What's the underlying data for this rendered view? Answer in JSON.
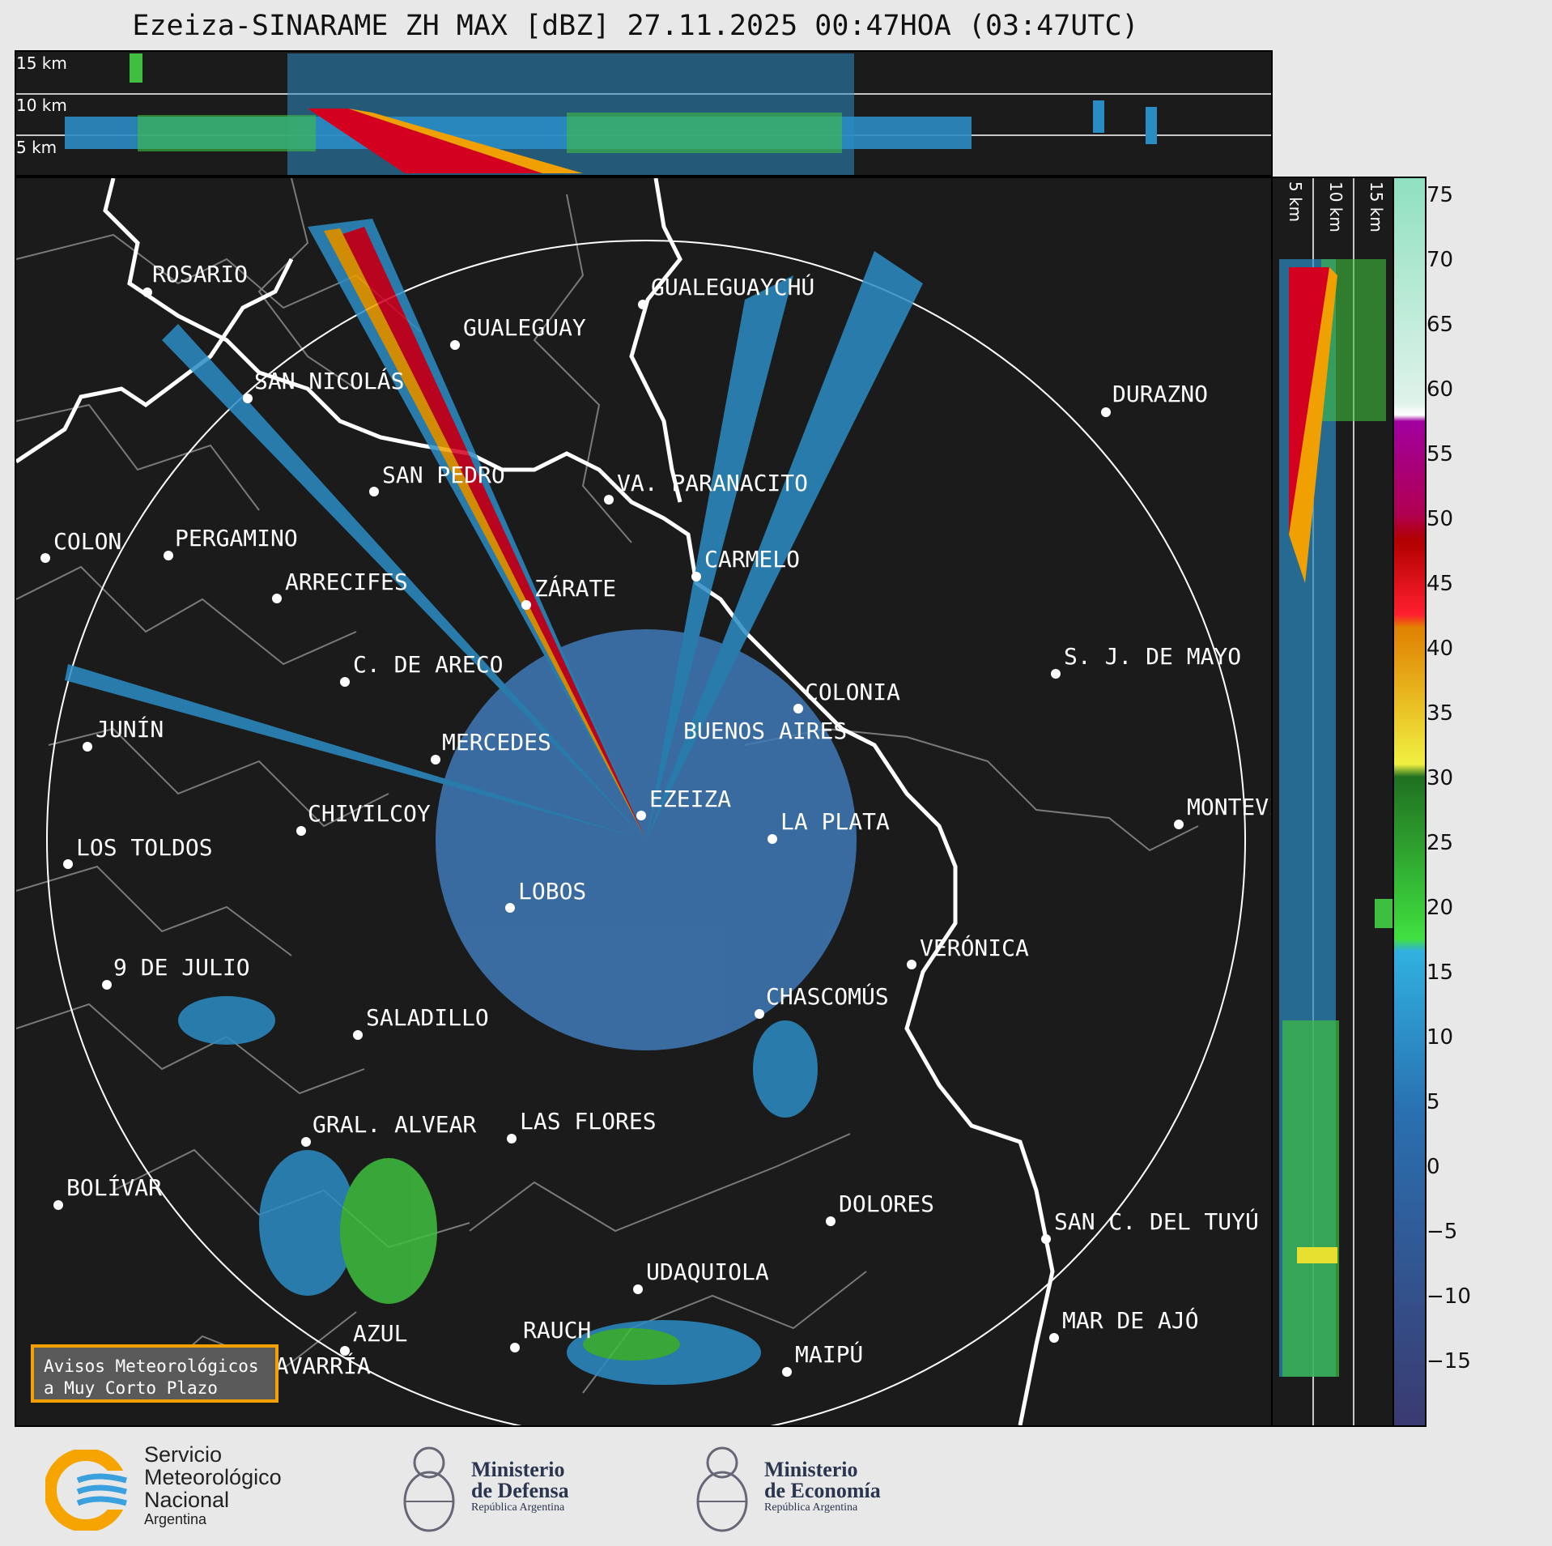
{
  "title": "Ezeiza-SINARAME ZH MAX [dBZ] 27.11.2025 00:47HOA (03:47UTC)",
  "top_panel": {
    "altitude_labels": [
      "15 km",
      "10 km",
      "5 km"
    ]
  },
  "side_panel": {
    "altitude_labels": [
      "5 km",
      "10 km",
      "15 km"
    ]
  },
  "colorbar": {
    "unit": "dBZ",
    "ticks": [
      "75",
      "70",
      "65",
      "60",
      "55",
      "50",
      "45",
      "40",
      "35",
      "30",
      "25",
      "20",
      "15",
      "10",
      "5",
      "0",
      "−5",
      "−10",
      "−15"
    ],
    "range": [
      -20,
      77
    ]
  },
  "cities": [
    {
      "name": "ROSARIO"
    },
    {
      "name": "GUALEGUAYCHÚ"
    },
    {
      "name": "GUALEGUAY"
    },
    {
      "name": "SAN NICOLÁS"
    },
    {
      "name": "DURAZNO"
    },
    {
      "name": "SAN PEDRO"
    },
    {
      "name": "VA. PARANACITO"
    },
    {
      "name": "COLON"
    },
    {
      "name": "PERGAMINO"
    },
    {
      "name": "CARMELO"
    },
    {
      "name": "ARRECIFES"
    },
    {
      "name": "ZÁRATE"
    },
    {
      "name": "S. J. DE MAYO"
    },
    {
      "name": "C. DE ARECO"
    },
    {
      "name": "COLONIA"
    },
    {
      "name": "JUNÍN"
    },
    {
      "name": "BUENOS AIRES"
    },
    {
      "name": "MERCEDES"
    },
    {
      "name": "MONTEVIDEO"
    },
    {
      "name": "EZEIZA"
    },
    {
      "name": "CHIVILCOY"
    },
    {
      "name": "LA PLATA"
    },
    {
      "name": "LOS TOLDOS"
    },
    {
      "name": "LOBOS"
    },
    {
      "name": "VERÓNICA"
    },
    {
      "name": "9 DE JULIO"
    },
    {
      "name": "CHASCOMÚS"
    },
    {
      "name": "SALADILLO"
    },
    {
      "name": "GRAL. ALVEAR"
    },
    {
      "name": "LAS FLORES"
    },
    {
      "name": "BOLÍVAR"
    },
    {
      "name": "DOLORES"
    },
    {
      "name": "SAN C. DEL TUYÚ"
    },
    {
      "name": "UDAQUIOLA"
    },
    {
      "name": "AZUL"
    },
    {
      "name": "RAUCH"
    },
    {
      "name": "MAR DE AJÓ"
    },
    {
      "name": "OLAVARRÍA"
    },
    {
      "name": "MAIPÚ"
    }
  ],
  "aviso": {
    "line1": "Avisos Meteorológicos",
    "line2": "a Muy Corto Plazo"
  },
  "logos": {
    "smn": {
      "line1": "Servicio",
      "line2": "Meteorológico",
      "line3": "Nacional",
      "line4": "Argentina"
    },
    "defensa": {
      "line1": "Ministerio",
      "line2": "de Defensa",
      "line3": "República Argentina"
    },
    "economia": {
      "line1": "Ministerio",
      "line2": "de Economía",
      "line3": "República Argentina"
    }
  }
}
